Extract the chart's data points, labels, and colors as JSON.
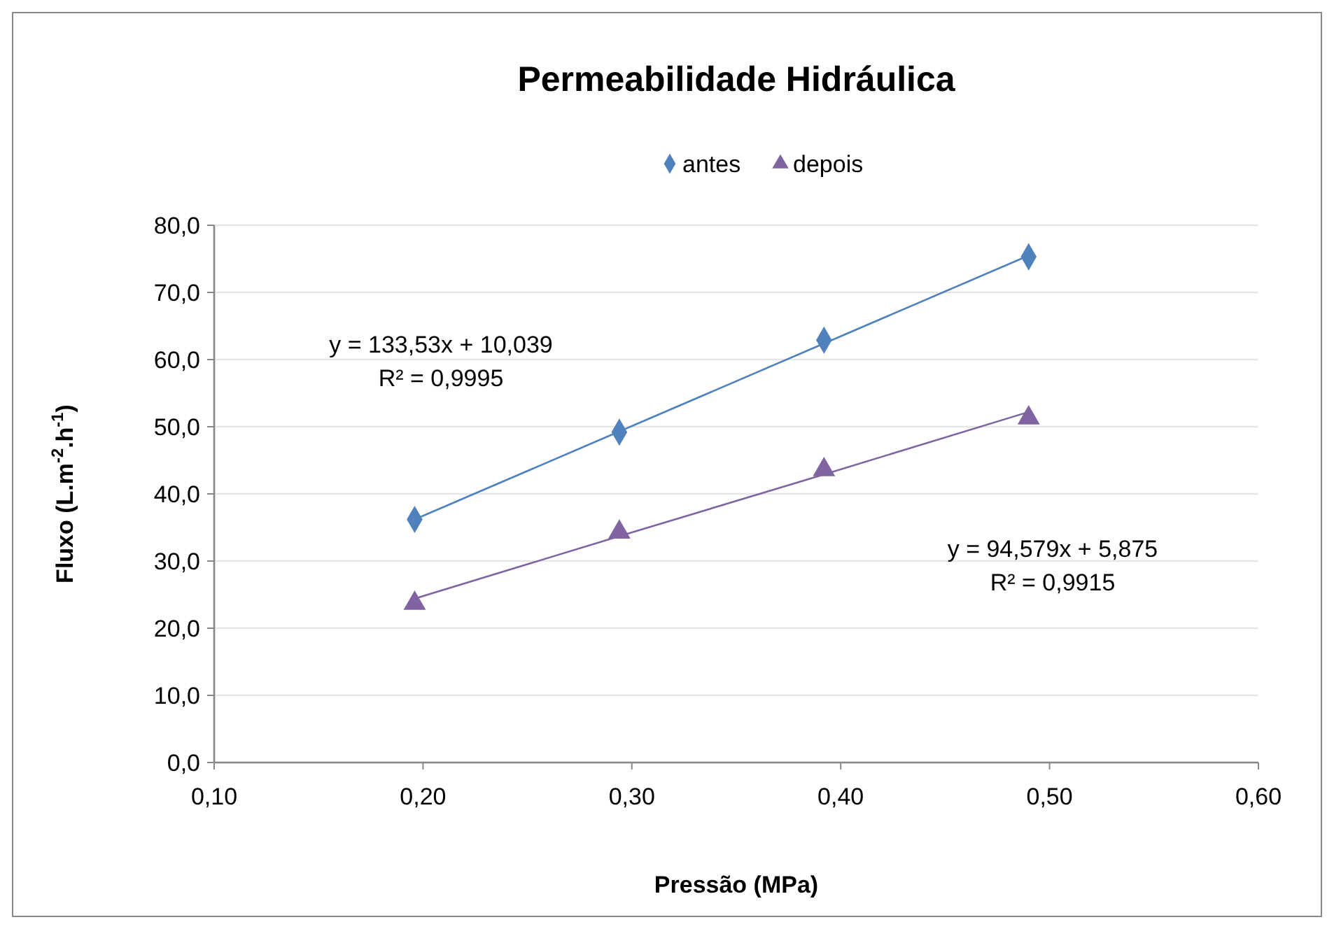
{
  "chart_data": {
    "type": "scatter",
    "title": "Permeabilidade Hidráulica",
    "xlabel": "Pressão (MPa)",
    "ylabel": "Fluxo (L.m$^{-2}$.h$^{-1}$)",
    "x": [
      0.196,
      0.294,
      0.392,
      0.49
    ],
    "series": [
      {
        "name": "antes",
        "color": "#4f81bd",
        "marker": "diamond",
        "values": [
          36.2,
          49.2,
          62.9,
          75.3
        ]
      },
      {
        "name": "depois",
        "color": "#8064a2",
        "marker": "triangle",
        "values": [
          23.7,
          34.3,
          43.6,
          51.3
        ]
      },
      {
        "type": "line",
        "color": "#4f81bd",
        "values": [
          36.2,
          49.3,
          62.4,
          75.5
        ]
      },
      {
        "type": "line",
        "color": "#8064a2",
        "values": [
          24.4,
          33.7,
          42.9,
          52.2
        ]
      }
    ],
    "annotations": [
      "y = 133,53x + 10,039",
      "R² = 0,9995",
      "y = 94,579x + 5,875",
      "R² = 0,9915"
    ],
    "xlim": [
      0.1,
      0.6
    ],
    "xticks": [
      {
        "value": 0.1,
        "label": "0,10"
      },
      {
        "value": 0.2,
        "label": "0,20"
      },
      {
        "value": 0.3,
        "label": "0,30"
      },
      {
        "value": 0.4,
        "label": "0,40"
      },
      {
        "value": 0.5,
        "label": "0,50"
      },
      {
        "value": 0.6,
        "label": "0,60"
      }
    ],
    "ylim": [
      0,
      80
    ],
    "yticks": [
      {
        "value": 0,
        "label": "0,0"
      },
      {
        "value": 10,
        "label": "10,0"
      },
      {
        "value": 20,
        "label": "20,0"
      },
      {
        "value": 30,
        "label": "30,0"
      },
      {
        "value": 40,
        "label": "40,0"
      },
      {
        "value": 50,
        "label": "50,0"
      },
      {
        "value": 60,
        "label": "60,0"
      },
      {
        "value": 70,
        "label": "70,0"
      },
      {
        "value": 80,
        "label": "80,0"
      }
    ],
    "grid": "y",
    "legend": "top",
    "line_style": "solid"
  }
}
